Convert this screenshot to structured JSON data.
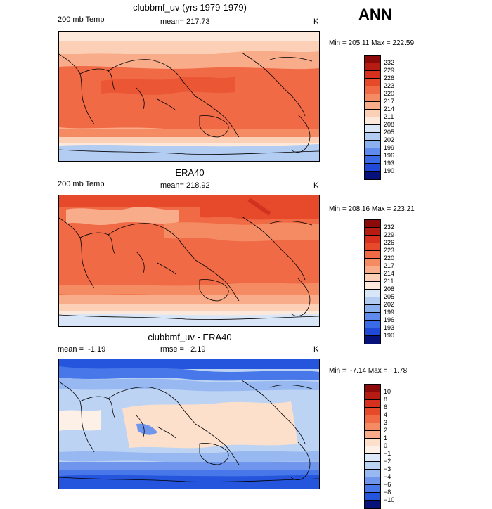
{
  "header": {
    "season": "ANN"
  },
  "colors": {
    "abs_scale": [
      "#8c0a0a",
      "#b71c12",
      "#d7301f",
      "#e7492b",
      "#f06a45",
      "#f58b63",
      "#f9ac8a",
      "#fcd0b7",
      "#fde9dc",
      "#d8e6f7",
      "#b3ccf2",
      "#8bb0ee",
      "#5f8cec",
      "#3b6ae6",
      "#1f49d6",
      "#0c2ab3",
      "#06117a"
    ],
    "diff_scale": [
      "#8c0a0a",
      "#b71c12",
      "#d7301f",
      "#e7492b",
      "#f06a45",
      "#f58b63",
      "#f9ac8a",
      "#fde0cc",
      "#fdf0e6",
      "#dde9f8",
      "#bcd3f4",
      "#97b8f0",
      "#6f96ec",
      "#4777e8",
      "#2555dc",
      "#0f33c0",
      "#06117a"
    ]
  },
  "panels": [
    {
      "title": "clubbmf_uv (yrs 1979-1979)",
      "left_label": "200 mb Temp",
      "center_label": "mean= 217.73",
      "units": "K",
      "minmax": "Min = 205.11 Max = 222.59",
      "levels": [
        "232",
        "229",
        "226",
        "223",
        "220",
        "217",
        "214",
        "211",
        "208",
        "205",
        "202",
        "199",
        "196",
        "193",
        "190"
      ]
    },
    {
      "title": "ERA40",
      "left_label": "200 mb Temp",
      "center_label": "mean= 218.92",
      "units": "K",
      "minmax": "Min = 208.16 Max = 223.21",
      "levels": [
        "232",
        "229",
        "226",
        "223",
        "220",
        "217",
        "214",
        "211",
        "208",
        "205",
        "202",
        "199",
        "196",
        "193",
        "190"
      ]
    },
    {
      "title": "clubbmf_uv - ERA40",
      "left_label": "mean =  -1.19",
      "center_label": "rmse =   2.19",
      "units": "K",
      "minmax": "Min =  -7.14 Max =   1.78",
      "levels": [
        "10",
        "8",
        "6",
        "4",
        "3",
        "2",
        "1",
        "0",
        "−1",
        "−2",
        "−3",
        "−4",
        "−6",
        "−8",
        "−10"
      ]
    }
  ]
}
